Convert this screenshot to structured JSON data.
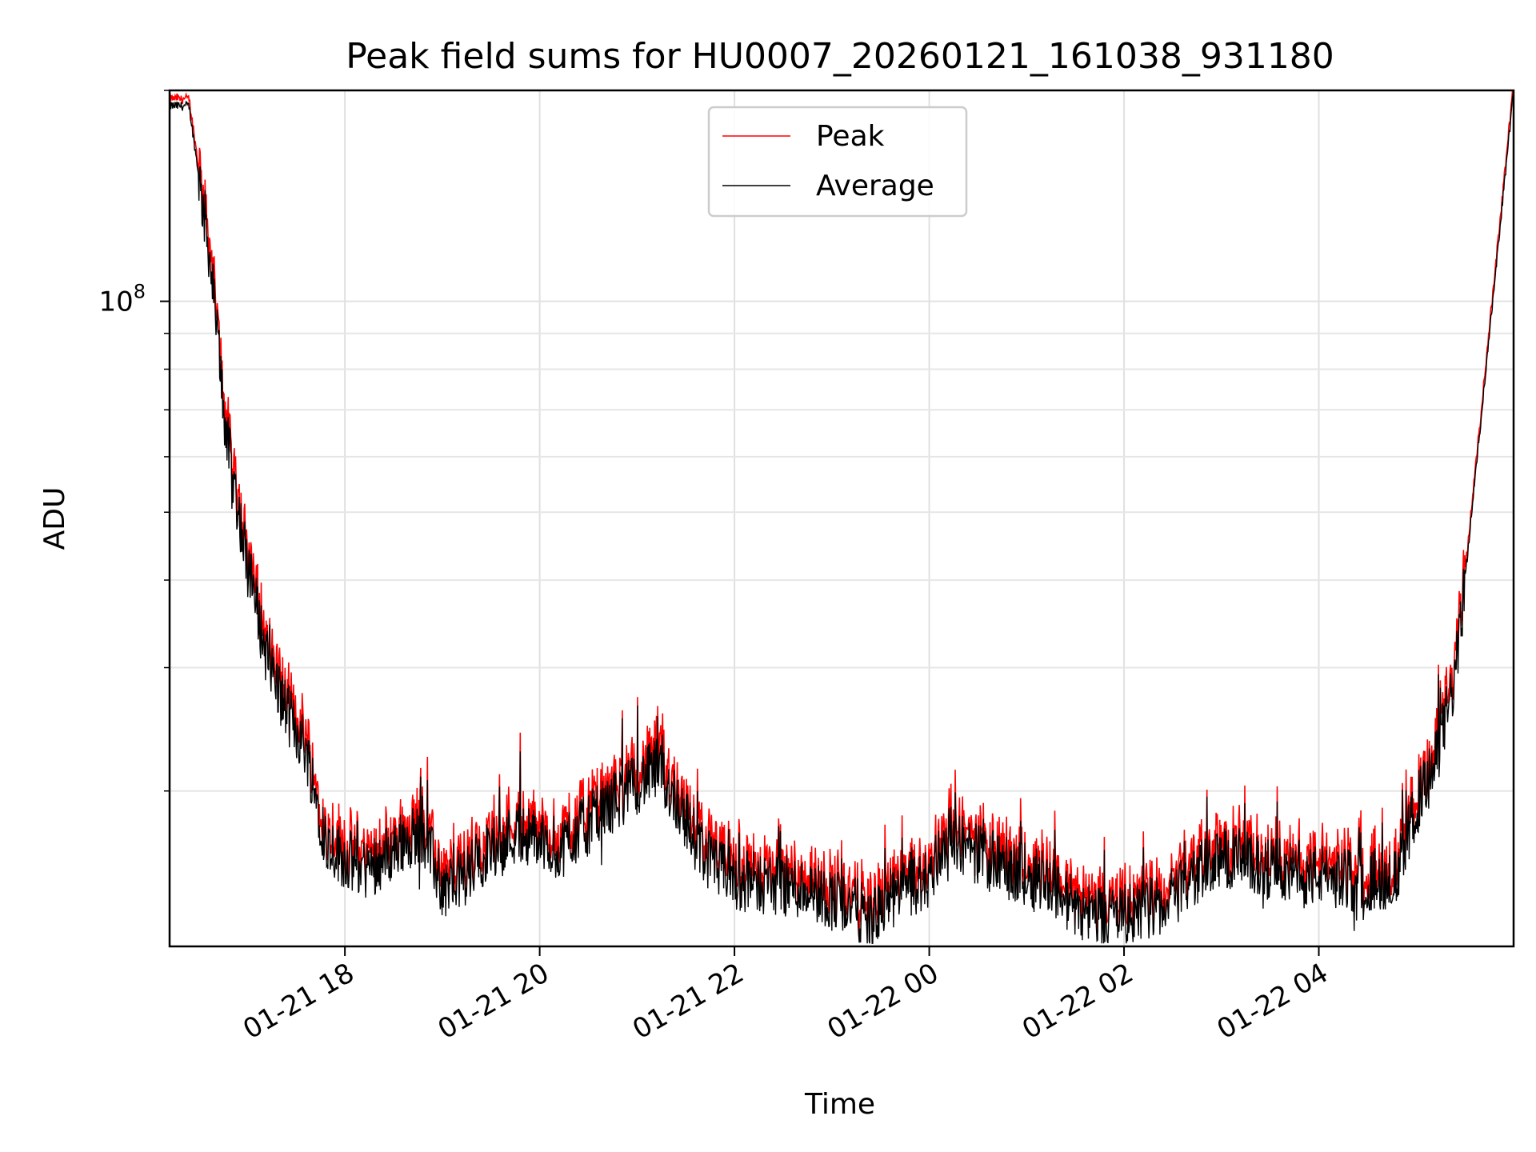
{
  "chart_data": {
    "type": "line",
    "title": "Peak field sums for HU0007_20260121_161038_931180",
    "xlabel": "Time",
    "ylabel": "ADU",
    "yscale": "log",
    "ylim": [
      12000000,
      200000000
    ],
    "xlim_hours": [
      16.2,
      30.0
    ],
    "x_ticks": [
      {
        "hour": 18,
        "label": "01-21 18"
      },
      {
        "hour": 20,
        "label": "01-21 20"
      },
      {
        "hour": 22,
        "label": "01-21 22"
      },
      {
        "hour": 24,
        "label": "01-22 00"
      },
      {
        "hour": 26,
        "label": "01-22 02"
      },
      {
        "hour": 28,
        "label": "01-22 04"
      }
    ],
    "y_major_ticks": [
      {
        "value": 100000000,
        "base": "10",
        "exp": "8"
      }
    ],
    "y_minor_ticks": [
      20000000,
      30000000,
      40000000,
      50000000,
      60000000,
      70000000,
      80000000,
      90000000,
      200000000
    ],
    "grid": true,
    "legend_position": "top-center",
    "series": [
      {
        "name": "Peak",
        "color": "#ff0000"
      },
      {
        "name": "Average",
        "color": "#000000"
      }
    ],
    "x_hours": [
      16.2,
      16.4,
      16.6,
      16.8,
      17.0,
      17.2,
      17.4,
      17.6,
      17.8,
      18.0,
      18.2,
      18.4,
      18.6,
      18.8,
      19.0,
      19.2,
      19.4,
      19.6,
      19.8,
      20.0,
      20.2,
      20.4,
      20.6,
      20.8,
      21.0,
      21.2,
      21.4,
      21.6,
      21.8,
      22.0,
      22.2,
      22.4,
      22.6,
      22.8,
      23.0,
      23.2,
      23.4,
      23.6,
      23.8,
      24.0,
      24.2,
      24.4,
      24.6,
      24.8,
      25.0,
      25.2,
      25.4,
      25.6,
      25.8,
      26.0,
      26.2,
      26.4,
      26.6,
      26.8,
      27.0,
      27.2,
      27.4,
      27.6,
      27.8,
      28.0,
      28.2,
      28.4,
      28.6,
      28.8,
      29.0,
      29.2,
      29.4,
      29.6,
      29.8,
      30.0
    ],
    "avg_values": [
      190000000,
      190000000,
      120000000,
      62000000,
      42000000,
      31000000,
      26000000,
      23000000,
      17000000,
      16000000,
      15500000,
      16000000,
      17000000,
      17500000,
      14500000,
      15000000,
      16000000,
      17000000,
      17500000,
      17000000,
      16500000,
      17500000,
      18500000,
      19500000,
      20500000,
      21500000,
      19500000,
      17000000,
      15500000,
      15000000,
      14800000,
      14700000,
      14600000,
      14400000,
      14000000,
      13800000,
      13000000,
      14000000,
      14500000,
      15000000,
      17500000,
      16500000,
      16000000,
      15500000,
      15200000,
      15000000,
      14000000,
      13500000,
      13300000,
      13300000,
      13500000,
      13800000,
      14500000,
      15500000,
      16000000,
      16000000,
      15500000,
      15500000,
      15000000,
      15200000,
      15000000,
      14800000,
      15000000,
      15000000,
      19000000,
      22000000,
      29000000,
      55000000,
      105000000,
      200000000
    ]
  }
}
